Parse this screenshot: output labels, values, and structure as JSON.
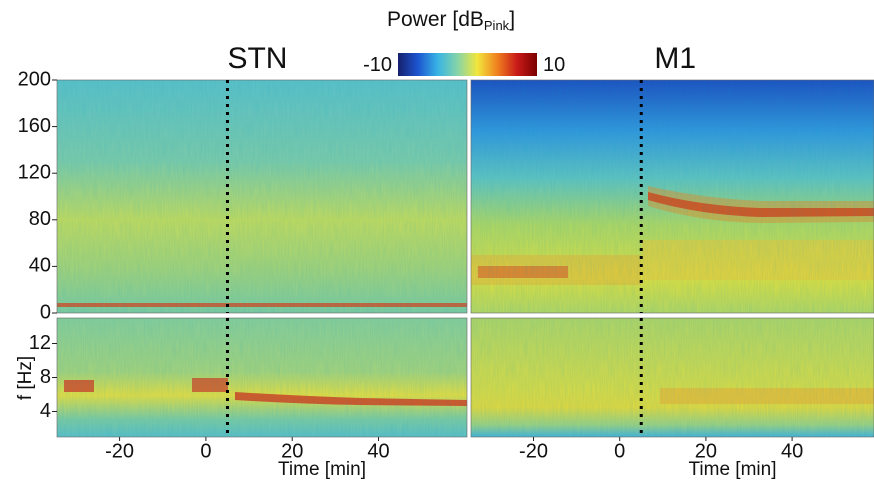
{
  "colorbar": {
    "label": "Power [dB",
    "label_sub": "Pink",
    "label_end": "]",
    "clim": [
      -10,
      10
    ],
    "ticks": [
      -10,
      10
    ],
    "colors": [
      "#16206e",
      "#1d55d0",
      "#38b4e4",
      "#86d4a8",
      "#f2e63c",
      "#f08020",
      "#c81a18",
      "#7a0000"
    ]
  },
  "ylabel": "f [Hz]",
  "chart_data": [
    {
      "type": "heatmap",
      "title": "STN",
      "xlim": [
        -34.5,
        60.5
      ],
      "ylim": [
        0,
        200
      ],
      "yticks": [
        0,
        40,
        80,
        120,
        160,
        200
      ],
      "event_x": 5
    },
    {
      "type": "heatmap",
      "title": "M1",
      "xlim": [
        -34.5,
        59
      ],
      "ylim": [
        0,
        200
      ],
      "event_x": 5
    },
    {
      "type": "heatmap",
      "xlabel": "Time [min]",
      "xlim": [
        -34.5,
        60.5
      ],
      "ylim": [
        1,
        15
      ],
      "xticks": [
        -20,
        0,
        20,
        40
      ],
      "yticks": [
        4,
        8,
        12
      ],
      "event_x": 5
    },
    {
      "type": "heatmap",
      "xlabel": "Time [min]",
      "xlim": [
        -34.5,
        59
      ],
      "ylim": [
        1,
        15
      ],
      "xticks": [
        -20,
        0,
        20,
        40
      ],
      "event_x": 5
    }
  ]
}
